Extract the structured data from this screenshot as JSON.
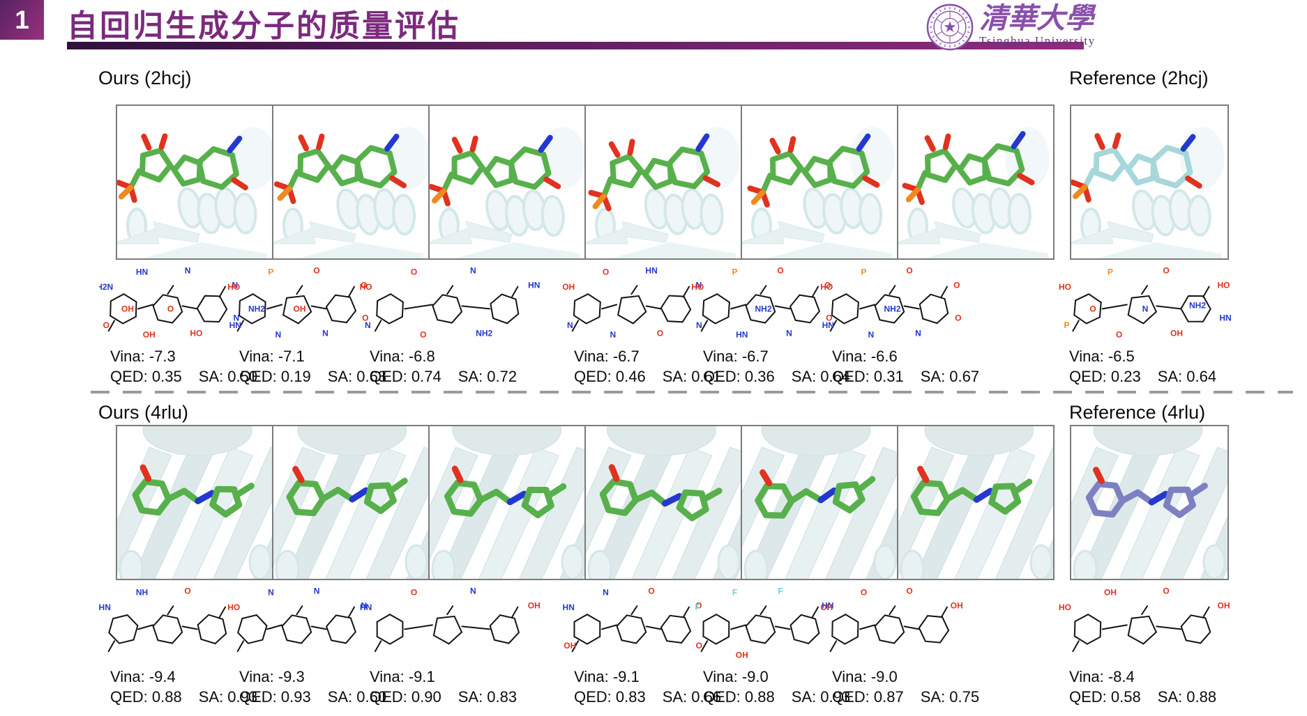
{
  "header": {
    "badge": "1",
    "title": "自回归生成分子的质量评估",
    "accent_color": "#7b2a7d",
    "underline_gradient": [
      "#32103e",
      "#8f2c80"
    ],
    "logo": {
      "cn": "清華大學",
      "en": "Tsinghua University",
      "color": "#8a50ab"
    }
  },
  "colors": {
    "ligand_ours": "#58b04c",
    "ligand_ref_2hcj": "#a6d7da",
    "ligand_ref_4rlu": "#7d81c2",
    "nitrogen": "#2438cf",
    "oxygen": "#e0321f",
    "phosphorus": "#ef8a1d",
    "fluorine": "#5fd3cf",
    "panel_border": "#7b7b7b",
    "protein_cartoon": "#e4f0f1"
  },
  "sections": [
    {
      "id": "2hcj",
      "ours_label": "Ours (2hcj)",
      "reference_label": "Reference (2hcj)",
      "molecules": [
        {
          "vina": "Vina: -7.3",
          "qed": "QED: 0.35",
          "sa": "SA: 0.50",
          "is_reference": false,
          "atom_labels": [
            "H2N",
            "HN",
            "N",
            "N",
            "O",
            "OH",
            "HO",
            "N",
            "O",
            "OH"
          ]
        },
        {
          "vina": "Vina: -7.1",
          "qed": "QED: 0.19",
          "sa": "SA: 0.63",
          "is_reference": false,
          "atom_labels": [
            "HO",
            "P",
            "O",
            "O",
            "HN",
            "N",
            "N",
            "O",
            "OH",
            "NH2"
          ]
        },
        {
          "vina": "Vina: -6.8",
          "qed": "QED: 0.74",
          "sa": "SA: 0.72",
          "is_reference": false,
          "atom_labels": [
            "HO",
            "O",
            "N",
            "HN",
            "N",
            "O",
            "NH2"
          ]
        },
        {
          "vina": "Vina: -6.7",
          "qed": "QED: 0.46",
          "sa": "SA: 0.61",
          "is_reference": false,
          "atom_labels": [
            "OH",
            "O",
            "HN",
            "N",
            "N",
            "N",
            "O"
          ]
        },
        {
          "vina": "Vina: -6.7",
          "qed": "QED: 0.36",
          "sa": "SA: 0.64",
          "is_reference": false,
          "atom_labels": [
            "HO",
            "P",
            "O",
            "O",
            "N",
            "HN",
            "N",
            "O",
            "NH2"
          ]
        },
        {
          "vina": "Vina: -6.6",
          "qed": "QED: 0.31",
          "sa": "SA: 0.67",
          "is_reference": false,
          "atom_labels": [
            "HO",
            "P",
            "O",
            "O",
            "HN",
            "N",
            "N",
            "O",
            "NH2"
          ]
        },
        {
          "vina": "Vina: -6.5",
          "qed": "QED: 0.23",
          "sa": "SA: 0.64",
          "is_reference": true,
          "atom_labels": [
            "HO",
            "P",
            "O",
            "HO",
            "P",
            "O",
            "OH",
            "HN",
            "N",
            "O",
            "NH2"
          ]
        }
      ]
    },
    {
      "id": "4rlu",
      "ours_label": "Ours (4rlu)",
      "reference_label": "Reference (4rlu)",
      "molecules": [
        {
          "vina": "Vina: -9.4",
          "qed": "QED: 0.88",
          "sa": "SA: 0.93",
          "is_reference": false,
          "atom_labels": [
            "HN",
            "NH",
            "O"
          ]
        },
        {
          "vina": "Vina: -9.3",
          "qed": "QED: 0.93",
          "sa": "SA: 0.60",
          "is_reference": false,
          "atom_labels": [
            "HO",
            "N",
            "N",
            "N"
          ]
        },
        {
          "vina": "Vina: -9.1",
          "qed": "QED: 0.90",
          "sa": "SA: 0.83",
          "is_reference": false,
          "atom_labels": [
            "HN",
            "O",
            "N",
            "OH"
          ]
        },
        {
          "vina": "Vina: -9.1",
          "qed": "QED: 0.83",
          "sa": "SA: 0.66",
          "is_reference": false,
          "atom_labels": [
            "HN",
            "N",
            "O",
            "O",
            "OH"
          ]
        },
        {
          "vina": "Vina: -9.0",
          "qed": "QED: 0.88",
          "sa": "SA: 0.93",
          "is_reference": false,
          "atom_labels": [
            "F",
            "F",
            "F",
            "HN",
            "O",
            "OH"
          ]
        },
        {
          "vina": "Vina: -9.0",
          "qed": "QED: 0.87",
          "sa": "SA: 0.75",
          "is_reference": false,
          "atom_labels": [
            "OH",
            "O",
            "O",
            "OH"
          ]
        },
        {
          "vina": "Vina: -8.4",
          "qed": "QED: 0.58",
          "sa": "SA: 0.88",
          "is_reference": true,
          "atom_labels": [
            "HO",
            "OH",
            "O",
            "OH"
          ]
        }
      ]
    }
  ]
}
